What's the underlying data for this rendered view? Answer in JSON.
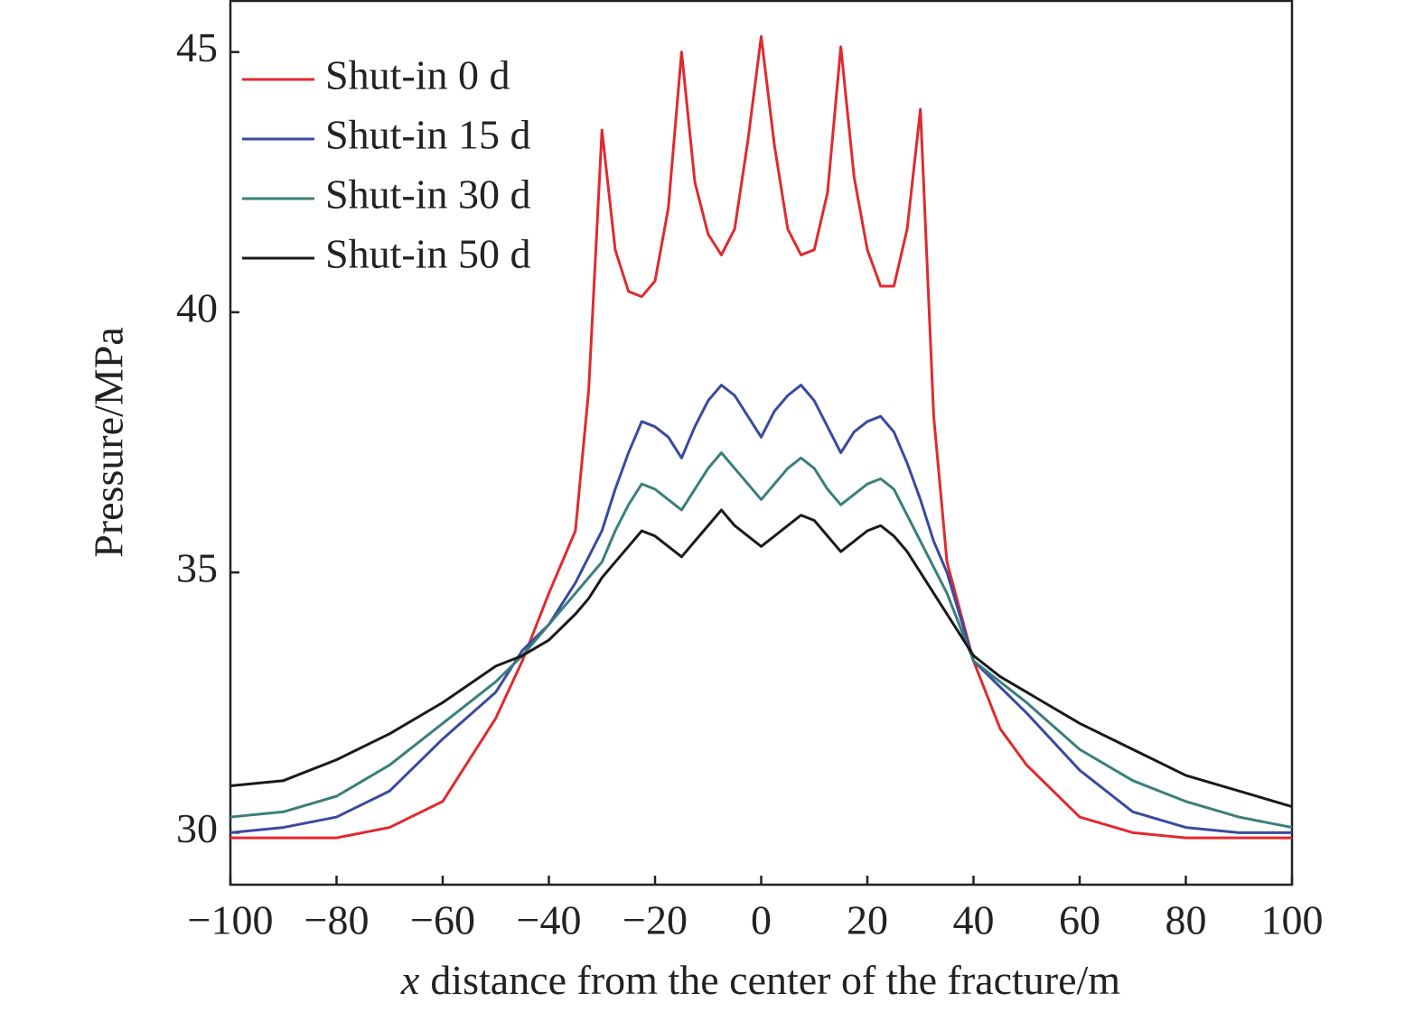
{
  "chart_data": {
    "type": "line",
    "xlabel_symbol": "x",
    "xlabel": "distance from the center of the fracture/m",
    "ylabel": "Pressure/MPa",
    "xlim": [
      -100,
      100
    ],
    "ylim": [
      29,
      46
    ],
    "xticks": [
      {
        "value": -100,
        "label": "−100"
      },
      {
        "value": -80,
        "label": "−80"
      },
      {
        "value": -60,
        "label": "−60"
      },
      {
        "value": -40,
        "label": "−40"
      },
      {
        "value": -20,
        "label": "−20"
      },
      0,
      20,
      40,
      60,
      80,
      100
    ],
    "yticks": [
      30,
      35,
      40,
      45
    ],
    "legend": "upper left",
    "x": [
      -100,
      -90,
      -80,
      -70,
      -60,
      -50,
      -45,
      -40,
      -35,
      -32.5,
      -30,
      -27.5,
      -25,
      -22.5,
      -20,
      -17.5,
      -15,
      -12.5,
      -10,
      -7.5,
      -5,
      -2.5,
      0,
      2.5,
      5,
      7.5,
      10,
      12.5,
      15,
      17.5,
      20,
      22.5,
      25,
      27.5,
      30,
      32.5,
      35,
      40,
      45,
      50,
      60,
      70,
      80,
      90,
      100
    ],
    "series": [
      {
        "name": "Shut-in 0 d",
        "color": "#e02a2f",
        "values": [
          29.9,
          29.9,
          29.9,
          30.1,
          30.6,
          32.2,
          33.3,
          34.6,
          35.8,
          38.5,
          43.5,
          41.2,
          40.4,
          40.3,
          40.6,
          42.0,
          45.0,
          42.5,
          41.5,
          41.1,
          41.6,
          43.3,
          45.3,
          43.2,
          41.6,
          41.1,
          41.2,
          42.3,
          45.1,
          42.6,
          41.2,
          40.5,
          40.5,
          41.6,
          43.9,
          38.0,
          35.2,
          33.3,
          32.0,
          31.3,
          30.3,
          30.0,
          29.9,
          29.9,
          29.9
        ]
      },
      {
        "name": "Shut-in 15 d",
        "color": "#3a4aa0",
        "values": [
          30.0,
          30.1,
          30.3,
          30.8,
          31.8,
          32.7,
          33.5,
          34.0,
          34.8,
          35.3,
          35.8,
          36.6,
          37.3,
          37.9,
          37.8,
          37.6,
          37.2,
          37.8,
          38.3,
          38.6,
          38.4,
          38.0,
          37.6,
          38.1,
          38.4,
          38.6,
          38.3,
          37.8,
          37.3,
          37.7,
          37.9,
          38.0,
          37.7,
          37.1,
          36.4,
          35.6,
          35.0,
          33.3,
          32.8,
          32.3,
          31.2,
          30.4,
          30.1,
          30.0,
          30.0
        ]
      },
      {
        "name": "Shut-in 30 d",
        "color": "#3a7f7a",
        "values": [
          30.3,
          30.4,
          30.7,
          31.3,
          32.1,
          32.9,
          33.4,
          34.0,
          34.6,
          34.9,
          35.2,
          35.8,
          36.3,
          36.7,
          36.6,
          36.4,
          36.2,
          36.6,
          37.0,
          37.3,
          37.0,
          36.7,
          36.4,
          36.7,
          37.0,
          37.2,
          37.0,
          36.6,
          36.3,
          36.5,
          36.7,
          36.8,
          36.6,
          36.1,
          35.6,
          35.1,
          34.6,
          33.3,
          32.9,
          32.5,
          31.6,
          31.0,
          30.6,
          30.3,
          30.1
        ]
      },
      {
        "name": "Shut-in 50 d",
        "color": "#1a1a1a",
        "values": [
          30.9,
          31.0,
          31.4,
          31.9,
          32.5,
          33.2,
          33.4,
          33.7,
          34.2,
          34.5,
          34.9,
          35.2,
          35.5,
          35.8,
          35.7,
          35.5,
          35.3,
          35.6,
          35.9,
          36.2,
          35.9,
          35.7,
          35.5,
          35.7,
          35.9,
          36.1,
          36.0,
          35.7,
          35.4,
          35.6,
          35.8,
          35.9,
          35.7,
          35.4,
          35.0,
          34.6,
          34.2,
          33.4,
          33.0,
          32.7,
          32.1,
          31.6,
          31.1,
          30.8,
          30.5
        ]
      }
    ]
  }
}
